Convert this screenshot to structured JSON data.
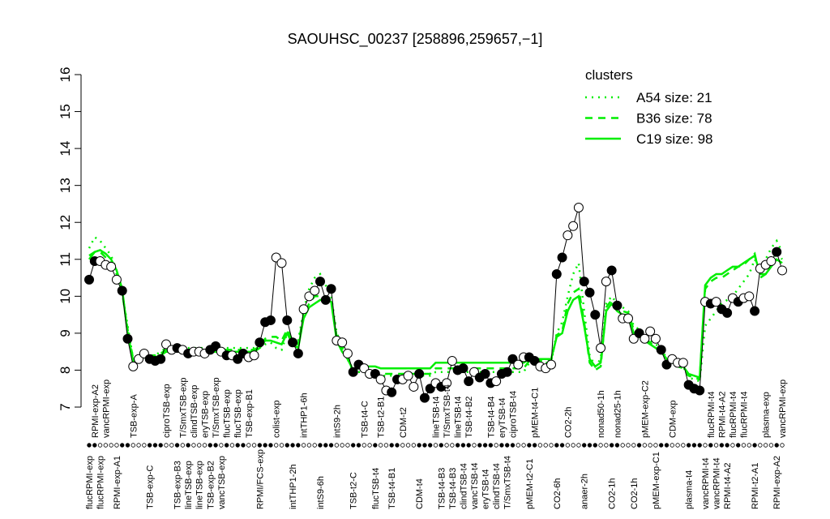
{
  "chart_data": {
    "type": "line",
    "title": "SAOUHSC_00237 [258896,259657,−1]",
    "ylim": [
      7,
      16
    ],
    "yticks": [
      7,
      8,
      9,
      10,
      11,
      12,
      13,
      14,
      15,
      16
    ],
    "line_color": "#000000",
    "categories": [
      "flucRPMI-exp",
      "RPMI-exp-A2",
      "flucRPMI-exp",
      "vancRPMI-exp",
      null,
      "RPMI-exp-A1",
      null,
      null,
      "TSB-exp-A",
      null,
      null,
      "TSB-exp-C",
      null,
      null,
      "ciproTSB-exp",
      null,
      "TSB-exp-B3",
      "T/SmxTSB-exp",
      "lineTSB-exp",
      "clindTSB-exp",
      "lineTSB-exp",
      "eryTSB-exp",
      "TSB-exp-B2",
      "T/SmxTSB-exp",
      "vancTSB-exp",
      "flucTSB-exp",
      null,
      "flucTSB-exp",
      null,
      "TSB-exp-B1",
      null,
      "RPMI/FCS-exp",
      null,
      null,
      "colist-exp",
      null,
      null,
      "intTHP1-2h",
      null,
      "intTHP1-6h",
      null,
      null,
      "intS9-6h",
      null,
      null,
      "intS9-2h",
      null,
      null,
      "TSB-t2-C",
      null,
      "TSB-t4-C",
      null,
      "flucTSB-t4",
      "TSB-t2-B1",
      null,
      "TSB-t4-B1",
      null,
      "CDM-t2",
      null,
      null,
      "CDM-t4",
      null,
      null,
      "lineTSB-t4",
      "TSB-t4-B3",
      "T/SmxTSB-t4",
      "TSB-t4-B3",
      "lineTSB-t4",
      "clindTSB-t4",
      "TSB-t4-B2",
      "vancTSB-t4",
      null,
      "eryTSB-t4",
      "TSB-t4-B4",
      "clindTSB-t4",
      "eryTSB-t4",
      "T/SmxTSB-t4",
      "ciproTSB-t4",
      null,
      null,
      "pMEM-t2-C1",
      "pMEM-t4-C1",
      null,
      null,
      null,
      "CO2-6h",
      null,
      "CO2-2h",
      null,
      null,
      "anaer-2h",
      null,
      null,
      "nonad50-1h",
      null,
      "CO2-1h",
      "nonad25-1h",
      null,
      null,
      "CO2-1h",
      null,
      "pMEM-exp-C2",
      null,
      "pMEM-exp-C1",
      null,
      null,
      "CDM-exp",
      null,
      null,
      "plasma-t4",
      null,
      null,
      "vancRPMI-t4",
      "flucRPMI-t4",
      "vancRPMI-t4",
      "RPMI-t4-A2",
      "RPMI-t4-A2",
      "flucRPMI-t4",
      null,
      "flucRPMI-t4",
      null,
      "RPMI-t2-A1",
      null,
      "plasma-exp",
      null,
      "RPMI-exp-A2",
      "vancRPMI-exp"
    ],
    "label_side": [
      "bottom",
      "top",
      "bottom",
      "top",
      null,
      "bottom",
      null,
      null,
      "top",
      null,
      null,
      "bottom",
      null,
      null,
      "top",
      null,
      "bottom",
      "top",
      "bottom",
      "top",
      "bottom",
      "top",
      "bottom",
      "top",
      "bottom",
      "top",
      null,
      "top",
      null,
      "top",
      null,
      "bottom",
      null,
      null,
      "top",
      null,
      null,
      "bottom",
      null,
      "top",
      null,
      null,
      "bottom",
      null,
      null,
      "top",
      null,
      null,
      "bottom",
      null,
      "top",
      null,
      "bottom",
      "top",
      null,
      "bottom",
      null,
      "top",
      null,
      null,
      "bottom",
      null,
      null,
      "top",
      "bottom",
      "top",
      "bottom",
      "top",
      "bottom",
      "top",
      "bottom",
      null,
      "bottom",
      "top",
      "bottom",
      "top",
      "bottom",
      "top",
      null,
      null,
      "bottom",
      "top",
      null,
      null,
      null,
      "bottom",
      null,
      "top",
      null,
      null,
      "bottom",
      null,
      null,
      "top",
      null,
      "bottom",
      "top",
      null,
      null,
      "bottom",
      null,
      "top",
      null,
      "bottom",
      null,
      null,
      "top",
      null,
      null,
      "bottom",
      null,
      null,
      "bottom",
      "top",
      "bottom",
      "top",
      "bottom",
      "top",
      null,
      "top",
      null,
      "bottom",
      null,
      "top",
      null,
      "bottom",
      "top"
    ],
    "values": [
      10.45,
      10.95,
      10.95,
      10.85,
      10.8,
      10.45,
      10.15,
      8.85,
      8.1,
      8.3,
      8.45,
      8.3,
      8.25,
      8.3,
      8.7,
      8.55,
      8.6,
      8.55,
      8.45,
      8.5,
      8.5,
      8.45,
      8.55,
      8.65,
      8.5,
      8.4,
      8.4,
      8.3,
      8.45,
      8.35,
      8.4,
      8.75,
      9.3,
      9.35,
      11.05,
      10.9,
      9.35,
      8.75,
      8.45,
      9.65,
      10.0,
      10.15,
      10.4,
      9.9,
      10.2,
      8.8,
      8.75,
      8.45,
      7.95,
      8.15,
      8.05,
      7.9,
      7.9,
      7.75,
      7.45,
      7.4,
      7.75,
      7.75,
      7.85,
      7.55,
      7.9,
      7.25,
      7.5,
      7.65,
      7.55,
      7.65,
      8.25,
      8.0,
      8.05,
      7.7,
      7.95,
      7.8,
      7.9,
      7.65,
      7.7,
      7.9,
      7.95,
      8.3,
      8.15,
      8.35,
      8.35,
      8.25,
      8.1,
      8.05,
      8.15,
      10.6,
      11.05,
      11.65,
      11.9,
      12.4,
      10.4,
      10.1,
      9.5,
      8.6,
      10.4,
      10.7,
      9.75,
      9.4,
      9.4,
      8.85,
      9.0,
      8.85,
      9.05,
      8.85,
      8.55,
      8.15,
      8.3,
      8.2,
      8.2,
      7.6,
      7.5,
      7.45,
      9.85,
      9.8,
      9.85,
      9.65,
      9.55,
      9.95,
      9.85,
      9.95,
      10.0,
      9.6,
      10.75,
      10.85,
      10.95,
      11.2,
      10.7
    ],
    "filled": [
      true,
      true,
      false,
      false,
      false,
      false,
      true,
      true,
      false,
      false,
      false,
      true,
      true,
      true,
      false,
      false,
      true,
      false,
      true,
      false,
      false,
      false,
      true,
      true,
      false,
      true,
      false,
      true,
      true,
      false,
      false,
      true,
      true,
      true,
      false,
      false,
      true,
      true,
      true,
      false,
      false,
      false,
      true,
      true,
      true,
      false,
      false,
      false,
      true,
      true,
      false,
      false,
      true,
      false,
      false,
      true,
      true,
      false,
      false,
      false,
      true,
      true,
      true,
      false,
      true,
      false,
      false,
      true,
      true,
      true,
      false,
      true,
      true,
      true,
      false,
      true,
      true,
      true,
      false,
      false,
      true,
      true,
      false,
      false,
      false,
      true,
      true,
      false,
      false,
      false,
      true,
      true,
      true,
      false,
      false,
      true,
      true,
      false,
      false,
      false,
      true,
      false,
      false,
      false,
      true,
      true,
      false,
      false,
      false,
      true,
      true,
      true,
      false,
      true,
      false,
      true,
      true,
      false,
      true,
      false,
      false,
      true,
      false,
      false,
      false,
      true,
      false
    ],
    "legend_title": "clusters",
    "legend_position": "top-right",
    "series": [
      {
        "name": "A54 size: 21",
        "color": "#00ee00",
        "dash": "dotted",
        "values": [
          11.3,
          11.6,
          11.5,
          11.3,
          11.1,
          10.7,
          10.1,
          9.2,
          8.3,
          8.3,
          8.35,
          8.4,
          8.4,
          8.5,
          8.6,
          8.6,
          8.6,
          8.6,
          8.6,
          8.6,
          8.6,
          8.6,
          8.6,
          8.6,
          8.6,
          8.6,
          8.6,
          8.6,
          8.6,
          8.6,
          8.6,
          8.6,
          8.7,
          8.75,
          8.6,
          8.55,
          9.0,
          8.8,
          8.8,
          9.6,
          10.2,
          10.5,
          10.6,
          10.3,
          10.0,
          9.0,
          8.7,
          8.4,
          7.95,
          7.95,
          7.95,
          7.9,
          7.85,
          7.85,
          7.85,
          7.85,
          7.85,
          7.85,
          7.85,
          7.85,
          7.85,
          7.85,
          7.85,
          7.95,
          7.95,
          7.95,
          7.95,
          7.95,
          7.95,
          7.95,
          7.95,
          7.95,
          7.95,
          7.95,
          7.95,
          7.95,
          7.95,
          7.95,
          7.95,
          7.95,
          8.2,
          8.2,
          8.2,
          8.2,
          8.2,
          9.0,
          9.3,
          10.0,
          10.6,
          10.9,
          9.6,
          8.4,
          8.1,
          8.3,
          9.8,
          10.0,
          9.8,
          9.7,
          9.6,
          9.2,
          9.1,
          9.0,
          8.8,
          8.7,
          8.6,
          8.3,
          8.2,
          8.15,
          8.1,
          7.8,
          7.75,
          7.7,
          9.2,
          9.4,
          9.6,
          9.8,
          9.9,
          10.0,
          10.2,
          10.4,
          10.6,
          11.0,
          10.7,
          11.0,
          11.3,
          11.5,
          11.2
        ]
      },
      {
        "name": "B36 size: 78",
        "color": "#00ee00",
        "dash": "dashed",
        "values": [
          11.1,
          11.2,
          11.2,
          11.05,
          10.9,
          10.6,
          10.1,
          9.1,
          8.3,
          8.3,
          8.35,
          8.4,
          8.4,
          8.45,
          8.55,
          8.55,
          8.55,
          8.55,
          8.55,
          8.55,
          8.55,
          8.55,
          8.55,
          8.55,
          8.55,
          8.55,
          8.55,
          8.55,
          8.55,
          8.55,
          8.55,
          8.65,
          8.85,
          8.9,
          8.9,
          8.8,
          9.1,
          8.8,
          8.7,
          9.5,
          9.8,
          10.0,
          10.0,
          9.95,
          9.9,
          8.9,
          8.6,
          8.3,
          7.95,
          8.0,
          8.0,
          8.0,
          7.95,
          7.9,
          7.9,
          7.9,
          7.9,
          7.9,
          7.9,
          7.9,
          7.9,
          7.9,
          7.9,
          8.05,
          8.05,
          8.05,
          8.05,
          8.05,
          8.05,
          8.05,
          8.05,
          8.05,
          8.05,
          8.05,
          8.05,
          8.05,
          8.05,
          8.05,
          8.05,
          8.05,
          8.25,
          8.25,
          8.25,
          8.25,
          8.25,
          8.95,
          9.05,
          9.8,
          10.1,
          10.2,
          9.3,
          8.2,
          8.0,
          8.1,
          9.7,
          9.9,
          9.7,
          9.6,
          9.55,
          9.1,
          9.0,
          8.85,
          8.75,
          8.6,
          8.5,
          8.3,
          8.2,
          8.1,
          8.05,
          7.85,
          7.8,
          7.75,
          10.2,
          10.4,
          10.5,
          10.5,
          10.6,
          10.7,
          10.8,
          10.85,
          11.0,
          11.15,
          10.5,
          10.6,
          10.9,
          11.2,
          11.0
        ]
      },
      {
        "name": "C19 size: 98",
        "color": "#00ee00",
        "dash": "solid",
        "values": [
          11.0,
          11.2,
          11.25,
          11.15,
          11.0,
          10.7,
          10.2,
          9.0,
          8.25,
          8.3,
          8.35,
          8.35,
          8.35,
          8.4,
          8.5,
          8.5,
          8.5,
          8.5,
          8.5,
          8.5,
          8.5,
          8.5,
          8.5,
          8.5,
          8.5,
          8.5,
          8.5,
          8.5,
          8.5,
          8.5,
          8.5,
          8.6,
          8.8,
          8.8,
          8.75,
          8.7,
          9.0,
          8.7,
          8.6,
          9.4,
          9.7,
          9.8,
          9.9,
          9.9,
          9.85,
          8.8,
          8.5,
          8.3,
          8.0,
          8.05,
          8.1,
          8.1,
          8.1,
          8.05,
          8.05,
          8.05,
          8.05,
          8.05,
          8.05,
          8.05,
          8.05,
          8.05,
          8.05,
          8.2,
          8.2,
          8.2,
          8.2,
          8.2,
          8.2,
          8.2,
          8.2,
          8.2,
          8.2,
          8.2,
          8.2,
          8.2,
          8.2,
          8.2,
          8.2,
          8.2,
          8.3,
          8.3,
          8.3,
          8.3,
          8.3,
          8.9,
          9.0,
          9.6,
          9.9,
          10.0,
          9.2,
          8.3,
          8.1,
          8.2,
          9.6,
          9.8,
          9.6,
          9.5,
          9.5,
          9.0,
          8.9,
          8.8,
          8.7,
          8.6,
          8.5,
          8.3,
          8.2,
          8.15,
          8.1,
          7.9,
          7.85,
          7.8,
          10.3,
          10.5,
          10.6,
          10.6,
          10.7,
          10.8,
          10.8,
          10.9,
          11.0,
          11.1,
          10.6,
          10.6,
          10.8,
          11.0,
          10.9
        ]
      }
    ]
  }
}
